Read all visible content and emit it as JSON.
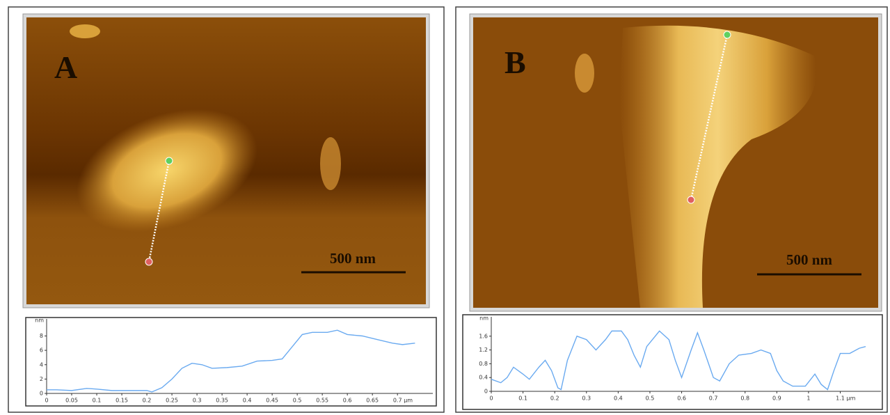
{
  "panels": [
    {
      "label": "A",
      "scale_bar": "500 nm"
    },
    {
      "label": "B",
      "scale_bar": "500 nm"
    }
  ],
  "chart_data": [
    {
      "type": "line",
      "x_label": "µm",
      "y_label": "nm",
      "color": "#6aaaf0",
      "xlim": [
        0,
        0.74
      ],
      "ylim": [
        0,
        9.6
      ],
      "xticks": [
        0,
        0.05,
        0.1,
        0.15,
        0.2,
        0.25,
        0.3,
        0.35,
        0.4,
        0.45,
        0.5,
        0.55,
        0.6,
        0.65,
        0.7
      ],
      "yticks": [
        0,
        2,
        4,
        6,
        8
      ],
      "x": [
        0,
        0.02,
        0.05,
        0.08,
        0.1,
        0.13,
        0.17,
        0.2,
        0.21,
        0.23,
        0.25,
        0.27,
        0.29,
        0.31,
        0.33,
        0.36,
        0.39,
        0.42,
        0.45,
        0.47,
        0.49,
        0.51,
        0.53,
        0.56,
        0.58,
        0.6,
        0.63,
        0.66,
        0.69,
        0.71,
        0.735
      ],
      "values": [
        0.5,
        0.5,
        0.4,
        0.7,
        0.6,
        0.4,
        0.4,
        0.4,
        0.2,
        0.8,
        2,
        3.5,
        4.2,
        4,
        3.5,
        3.6,
        3.8,
        4.5,
        4.6,
        4.8,
        6.5,
        8.2,
        8.5,
        8.5,
        8.8,
        8.2,
        8,
        7.5,
        7,
        6.8,
        7
      ]
    },
    {
      "type": "line",
      "x_label": "µm",
      "y_label": "nm",
      "color": "#6aaaf0",
      "xlim": [
        0,
        1.18
      ],
      "ylim": [
        0,
        2
      ],
      "xticks": [
        0,
        0.1,
        0.2,
        0.3,
        0.4,
        0.5,
        0.6,
        0.7,
        0.8,
        0.9,
        1,
        1.1
      ],
      "yticks": [
        0,
        0.4,
        0.8,
        1.2,
        1.6
      ],
      "x": [
        0,
        0.03,
        0.05,
        0.07,
        0.1,
        0.12,
        0.15,
        0.17,
        0.19,
        0.21,
        0.22,
        0.24,
        0.27,
        0.3,
        0.33,
        0.36,
        0.38,
        0.41,
        0.43,
        0.45,
        0.47,
        0.49,
        0.53,
        0.56,
        0.58,
        0.6,
        0.63,
        0.65,
        0.67,
        0.7,
        0.72,
        0.75,
        0.78,
        0.82,
        0.85,
        0.88,
        0.9,
        0.92,
        0.95,
        0.99,
        1.02,
        1.04,
        1.06,
        1.08,
        1.1,
        1.13,
        1.16,
        1.18
      ],
      "values": [
        0.35,
        0.25,
        0.4,
        0.7,
        0.5,
        0.35,
        0.7,
        0.9,
        0.6,
        0.1,
        0.05,
        0.9,
        1.6,
        1.5,
        1.2,
        1.5,
        1.75,
        1.75,
        1.5,
        1.05,
        0.7,
        1.3,
        1.75,
        1.5,
        0.9,
        0.4,
        1.2,
        1.7,
        1.2,
        0.4,
        0.3,
        0.8,
        1.05,
        1.1,
        1.2,
        1.1,
        0.6,
        0.3,
        0.15,
        0.15,
        0.5,
        0.2,
        0.05,
        0.6,
        1.1,
        1.1,
        1.25,
        1.3
      ]
    }
  ]
}
